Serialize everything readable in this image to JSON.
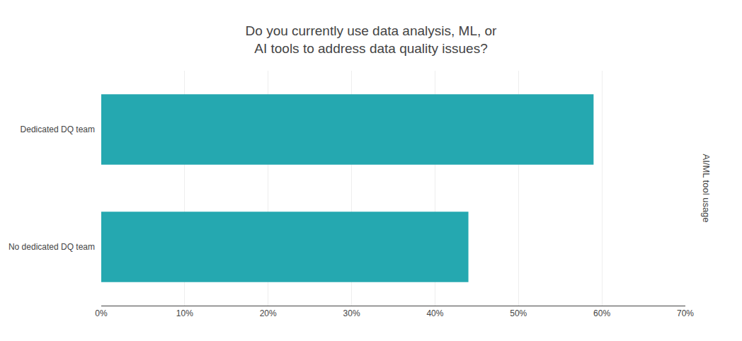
{
  "chart_data": {
    "type": "bar",
    "orientation": "horizontal",
    "title": "Do you currently use data analysis, ML, or\nAI tools to address data quality issues?",
    "ylabel": "AI/ML tool usage",
    "categories": [
      "No dedicated DQ team",
      "Dedicated DQ team"
    ],
    "values": [
      44,
      59
    ],
    "color": "#25A8B0",
    "xlim": [
      0,
      70
    ],
    "xticks": [
      {
        "value": 0,
        "label": "0%"
      },
      {
        "value": 10,
        "label": "10%"
      },
      {
        "value": 20,
        "label": "20%"
      },
      {
        "value": 30,
        "label": "30%"
      },
      {
        "value": 40,
        "label": "40%"
      },
      {
        "value": 50,
        "label": "50%"
      },
      {
        "value": 60,
        "label": "60%"
      },
      {
        "value": 70,
        "label": "70%"
      }
    ],
    "grid": true
  }
}
